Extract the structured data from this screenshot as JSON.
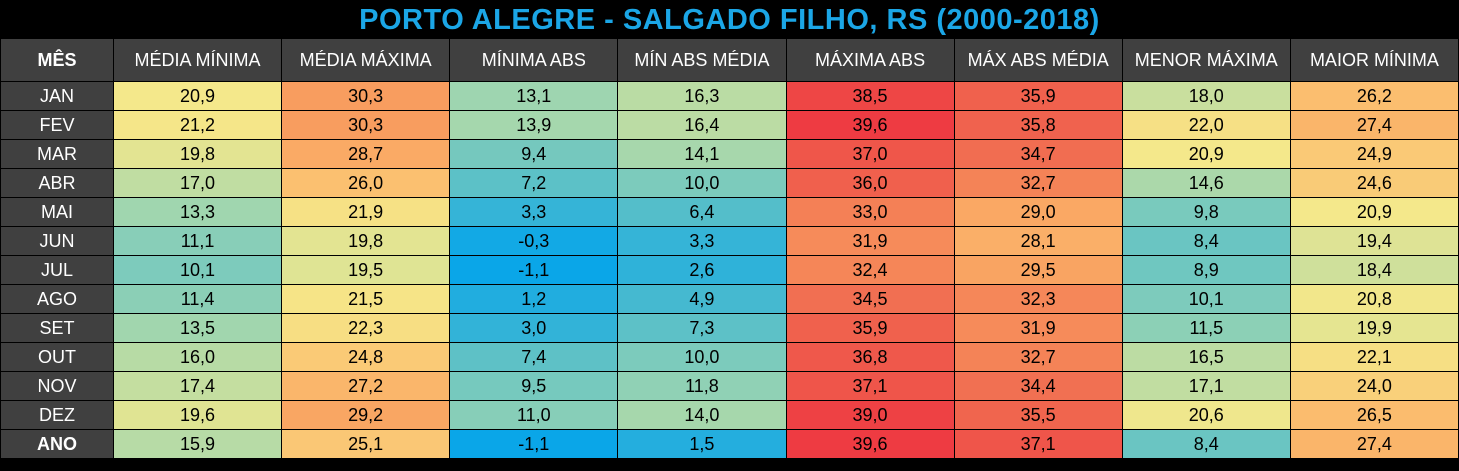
{
  "title": "PORTO ALEGRE - SALGADO FILHO, RS (2000-2018)",
  "table": {
    "header": [
      "MÊS",
      "MÉDIA MÍNIMA",
      "MÉDIA MÁXIMA",
      "MÍNIMA ABS",
      "MÍN ABS MÉDIA",
      "MÁXIMA ABS",
      "MÁX ABS MÉDIA",
      "MENOR MÁXIMA",
      "MAIOR MÍNIMA"
    ],
    "rows": [
      [
        "JAN",
        "20,9",
        "30,3",
        "13,1",
        "16,3",
        "38,5",
        "35,9",
        "18,0",
        "26,2"
      ],
      [
        "FEV",
        "21,2",
        "30,3",
        "13,9",
        "16,4",
        "39,6",
        "35,8",
        "22,0",
        "27,4"
      ],
      [
        "MAR",
        "19,8",
        "28,7",
        "9,4",
        "14,1",
        "37,0",
        "34,7",
        "20,9",
        "24,9"
      ],
      [
        "ABR",
        "17,0",
        "26,0",
        "7,2",
        "10,0",
        "36,0",
        "32,7",
        "14,6",
        "24,6"
      ],
      [
        "MAI",
        "13,3",
        "21,9",
        "3,3",
        "6,4",
        "33,0",
        "29,0",
        "9,8",
        "20,9"
      ],
      [
        "JUN",
        "11,1",
        "19,8",
        "-0,3",
        "3,3",
        "31,9",
        "28,1",
        "8,4",
        "19,4"
      ],
      [
        "JUL",
        "10,1",
        "19,5",
        "-1,1",
        "2,6",
        "32,4",
        "29,5",
        "8,9",
        "18,4"
      ],
      [
        "AGO",
        "11,4",
        "21,5",
        "1,2",
        "4,9",
        "34,5",
        "32,3",
        "10,1",
        "20,8"
      ],
      [
        "SET",
        "13,5",
        "22,3",
        "3,0",
        "7,3",
        "35,9",
        "31,9",
        "11,5",
        "19,9"
      ],
      [
        "OUT",
        "16,0",
        "24,8",
        "7,4",
        "10,0",
        "36,8",
        "32,7",
        "16,5",
        "22,1"
      ],
      [
        "NOV",
        "17,4",
        "27,2",
        "9,5",
        "11,8",
        "37,1",
        "34,4",
        "17,1",
        "24,0"
      ],
      [
        "DEZ",
        "19,6",
        "29,2",
        "11,0",
        "14,0",
        "39,0",
        "35,5",
        "20,6",
        "26,5"
      ],
      [
        "ANO",
        "15,9",
        "25,1",
        "-1,1",
        "1,5",
        "39,6",
        "37,1",
        "8,4",
        "27,4"
      ]
    ]
  }
}
